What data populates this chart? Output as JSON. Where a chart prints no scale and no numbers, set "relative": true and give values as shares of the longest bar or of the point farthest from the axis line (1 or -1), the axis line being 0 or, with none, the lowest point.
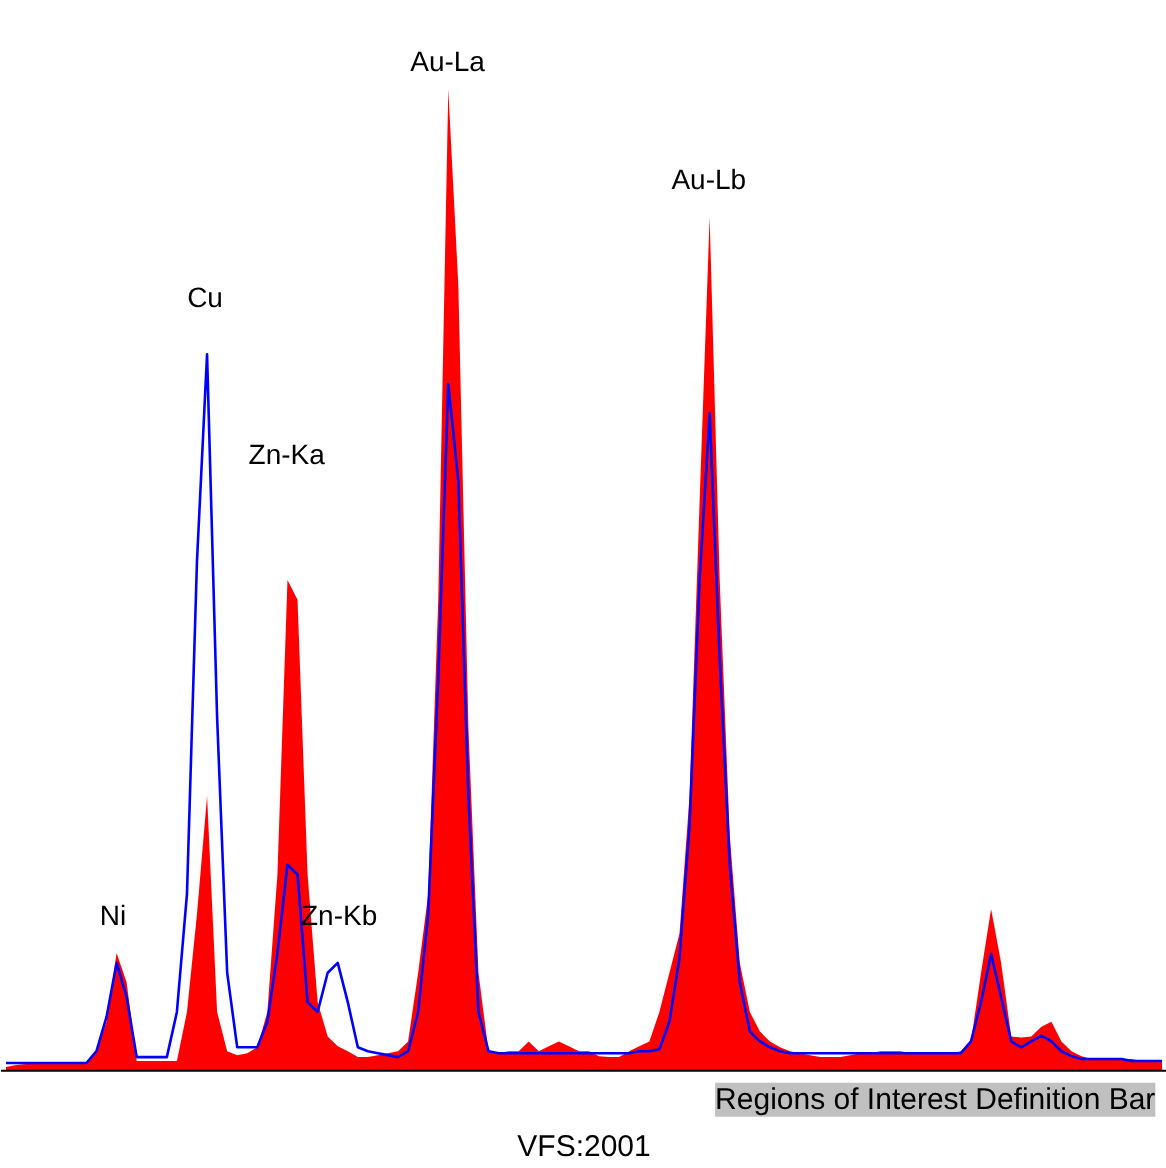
{
  "chart_data": {
    "type": "area",
    "relative": true,
    "grid": false,
    "categories": [
      null,
      null,
      null,
      null,
      null,
      null,
      null,
      null,
      null,
      null,
      null,
      null,
      null,
      null,
      null,
      null,
      null,
      null,
      null,
      null,
      null,
      null,
      null,
      null,
      null,
      null,
      null,
      null,
      null,
      null,
      null,
      null,
      null,
      null,
      null,
      null,
      null,
      null,
      null,
      null,
      null,
      null,
      null,
      null,
      null,
      null,
      null,
      null,
      null,
      null,
      null,
      null,
      null,
      null,
      null,
      null,
      null,
      null,
      null,
      null,
      null,
      null,
      null,
      null,
      null,
      null,
      null,
      null,
      null,
      null,
      null,
      null,
      null,
      null,
      null,
      null,
      null,
      null,
      null,
      null,
      null,
      null,
      null,
      null,
      null,
      null,
      null,
      null,
      null,
      null,
      null,
      null,
      null,
      null,
      null,
      null,
      null,
      null,
      null,
      null,
      null,
      null,
      null,
      null,
      null,
      null,
      null,
      null,
      null,
      null,
      null,
      null,
      null,
      null,
      null,
      null
    ],
    "series": [
      {
        "color": "#ff0000",
        "values": [
          0.004,
          0.006,
          0.007,
          0.007,
          0.008,
          0.008,
          0.008,
          0.008,
          0.008,
          0.02,
          0.05,
          0.12,
          0.09,
          0.01,
          0.01,
          0.01,
          0.01,
          0.01,
          0.06,
          0.16,
          0.28,
          0.06,
          0.02,
          0.016,
          0.018,
          0.024,
          0.06,
          0.2,
          0.5,
          0.48,
          0.2,
          0.07,
          0.035,
          0.025,
          0.02,
          0.014,
          0.014,
          0.016,
          0.018,
          0.02,
          0.03,
          0.1,
          0.18,
          0.48,
          1.0,
          0.8,
          0.35,
          0.1,
          0.02,
          0.018,
          0.02,
          0.02,
          0.03,
          0.02,
          0.025,
          0.03,
          0.025,
          0.02,
          0.02,
          0.015,
          0.014,
          0.014,
          0.02,
          0.025,
          0.03,
          0.06,
          0.1,
          0.14,
          0.28,
          0.58,
          0.87,
          0.5,
          0.24,
          0.11,
          0.06,
          0.04,
          0.03,
          0.024,
          0.02,
          0.018,
          0.016,
          0.014,
          0.014,
          0.014,
          0.016,
          0.018,
          0.018,
          0.02,
          0.02,
          0.02,
          0.018,
          0.018,
          0.018,
          0.018,
          0.018,
          0.02,
          0.03,
          0.1,
          0.165,
          0.11,
          0.035,
          0.034,
          0.035,
          0.045,
          0.05,
          0.03,
          0.02,
          0.015,
          0.012,
          0.012,
          0.012,
          0.012,
          0.012,
          0.01,
          0.01,
          0.01
        ]
      },
      {
        "type": "line",
        "color": "#0000ff",
        "values": [
          0.008,
          0.008,
          0.008,
          0.008,
          0.008,
          0.008,
          0.008,
          0.008,
          0.008,
          0.02,
          0.055,
          0.11,
          0.075,
          0.014,
          0.014,
          0.014,
          0.014,
          0.06,
          0.18,
          0.52,
          0.73,
          0.36,
          0.1,
          0.024,
          0.024,
          0.024,
          0.05,
          0.12,
          0.21,
          0.2,
          0.07,
          0.06,
          0.1,
          0.11,
          0.07,
          0.024,
          0.02,
          0.018,
          0.016,
          0.014,
          0.02,
          0.06,
          0.16,
          0.4,
          0.7,
          0.6,
          0.28,
          0.06,
          0.02,
          0.018,
          0.018,
          0.018,
          0.018,
          0.018,
          0.018,
          0.018,
          0.018,
          0.018,
          0.018,
          0.018,
          0.018,
          0.018,
          0.018,
          0.02,
          0.02,
          0.022,
          0.05,
          0.115,
          0.25,
          0.5,
          0.67,
          0.42,
          0.21,
          0.09,
          0.04,
          0.03,
          0.024,
          0.02,
          0.018,
          0.018,
          0.018,
          0.018,
          0.018,
          0.018,
          0.018,
          0.018,
          0.018,
          0.018,
          0.018,
          0.018,
          0.018,
          0.018,
          0.018,
          0.018,
          0.018,
          0.018,
          0.03,
          0.07,
          0.119,
          0.075,
          0.03,
          0.024,
          0.03,
          0.036,
          0.03,
          0.02,
          0.015,
          0.012,
          0.012,
          0.012,
          0.012,
          0.012,
          0.01,
          0.01,
          0.01,
          0.01
        ]
      }
    ],
    "annotations": [
      "Ni",
      "Cu",
      "Zn-Ka",
      "Zn-Kb",
      "Au-La",
      "Au-Lb",
      "Regions of Interest Definition Bar",
      "VFS:2001"
    ]
  }
}
